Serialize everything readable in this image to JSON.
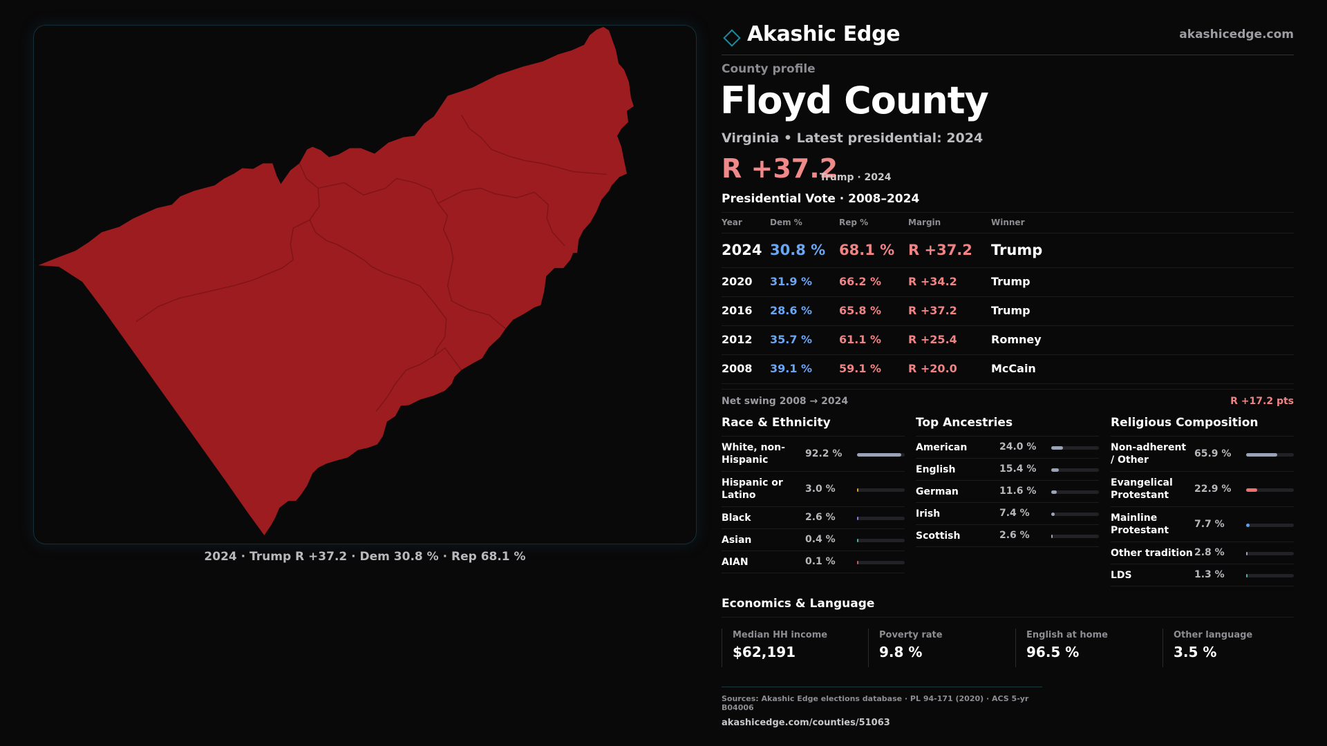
{
  "brand": {
    "name": "Akashic Edge",
    "url": "akashicedge.com"
  },
  "colors": {
    "background": "#0a090a",
    "county_fill": "#9c1c1f",
    "dem": "#6aa6f4",
    "rep": "#f08484",
    "accent": "#135f6e"
  },
  "map": {
    "caption": "2024 · Trump R +37.2 · Dem 30.8 % · Rep 68.1 %",
    "region": "Floyd County",
    "winner": "Trump"
  },
  "profile": {
    "eyebrow": "County profile",
    "name": "Floyd County",
    "subtitle": "Virginia • Latest presidential: 2024",
    "margin": "R +37.2",
    "margin_note": "Trump · 2024"
  },
  "presidential": {
    "title": "Presidential Vote · 2008–2024",
    "headers": [
      "Year",
      "Dem %",
      "Rep %",
      "Margin",
      "Winner"
    ],
    "rows": [
      {
        "year": "2024",
        "dem": "30.8 %",
        "rep": "68.1 %",
        "margin": "R +37.2",
        "winner": "Trump"
      },
      {
        "year": "2020",
        "dem": "31.9 %",
        "rep": "66.2 %",
        "margin": "R +34.2",
        "winner": "Trump"
      },
      {
        "year": "2016",
        "dem": "28.6 %",
        "rep": "65.8 %",
        "margin": "R +37.2",
        "winner": "Trump"
      },
      {
        "year": "2012",
        "dem": "35.7 %",
        "rep": "61.1 %",
        "margin": "R +25.4",
        "winner": "Romney"
      },
      {
        "year": "2008",
        "dem": "39.1 %",
        "rep": "59.1 %",
        "margin": "R +20.0",
        "winner": "McCain"
      }
    ],
    "swing_label": "Net swing 2008 → 2024",
    "swing_value": "R +17.2 pts"
  },
  "race": {
    "title": "Race & Ethnicity",
    "items": [
      {
        "label": "White, non-Hispanic",
        "value": "92.2 %",
        "share": 0.922,
        "color": "#9aa4b6"
      },
      {
        "label": "Hispanic or Latino",
        "value": "3.0 %",
        "share": 0.03,
        "color": "#e0a030"
      },
      {
        "label": "Black",
        "value": "2.6 %",
        "share": 0.026,
        "color": "#8a7be0"
      },
      {
        "label": "Asian",
        "value": "0.4 %",
        "share": 0.004,
        "color": "#4fb0a0"
      },
      {
        "label": "AIAN",
        "value": "0.1 %",
        "share": 0.001,
        "color": "#c06060"
      }
    ]
  },
  "ancestry": {
    "title": "Top Ancestries",
    "items": [
      {
        "label": "American",
        "value": "24.0 %",
        "share": 0.24,
        "color": "#9aa4b6"
      },
      {
        "label": "English",
        "value": "15.4 %",
        "share": 0.154,
        "color": "#9aa4b6"
      },
      {
        "label": "German",
        "value": "11.6 %",
        "share": 0.116,
        "color": "#9aa4b6"
      },
      {
        "label": "Irish",
        "value": "7.4 %",
        "share": 0.074,
        "color": "#9aa4b6"
      },
      {
        "label": "Scottish",
        "value": "2.6 %",
        "share": 0.026,
        "color": "#9aa4b6"
      }
    ]
  },
  "religion": {
    "title": "Religious Composition",
    "items": [
      {
        "label": "Non-adherent / Other",
        "value": "65.9 %",
        "share": 0.659,
        "color": "#9aa4b6"
      },
      {
        "label": "Evangelical Protestant",
        "value": "22.9 %",
        "share": 0.229,
        "color": "#f07070"
      },
      {
        "label": "Mainline Protestant",
        "value": "7.7 %",
        "share": 0.077,
        "color": "#5aa0f0"
      },
      {
        "label": "Other tradition",
        "value": "2.8 %",
        "share": 0.028,
        "color": "#9aa4b6"
      },
      {
        "label": "LDS",
        "value": "1.3 %",
        "share": 0.013,
        "color": "#4fb0a0"
      }
    ]
  },
  "economics": {
    "title": "Economics & Language",
    "items": [
      {
        "label": "Median HH income",
        "value": "$62,191"
      },
      {
        "label": "Poverty rate",
        "value": "9.8 %"
      },
      {
        "label": "English at home",
        "value": "96.5 %"
      },
      {
        "label": "Other language",
        "value": "3.5 %"
      }
    ]
  },
  "sources": {
    "line1": "Sources: Akashic Edge elections database · PL 94-171 (2020) · ACS 5-yr B04006",
    "line2": "akashicedge.com/counties/51063"
  }
}
